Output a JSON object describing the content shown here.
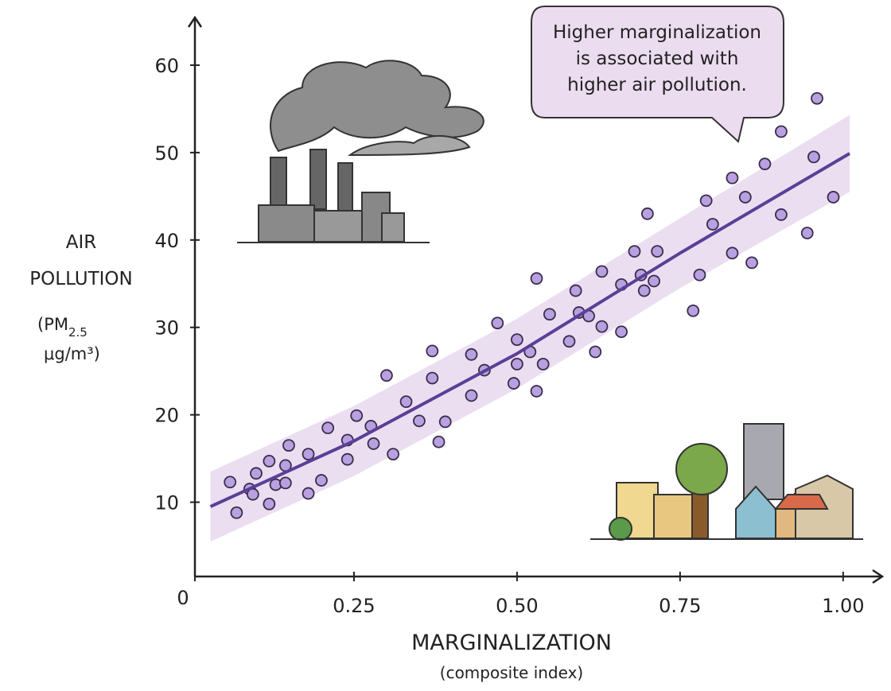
{
  "chart_data": {
    "type": "scatter",
    "annotation": [
      "Higher marginalization",
      "is associated with",
      "higher air pollution."
    ],
    "y_label": [
      "AIR",
      "POLLUTION"
    ],
    "y_unit": {
      "open": "(PM",
      "sub": "2.5",
      "rest": "μg/m³)"
    },
    "x_label": "MARGINALIZATION",
    "x_sublabel": "(composite index)",
    "xlim": [
      0,
      1.06
    ],
    "ylim": [
      1.5,
      65
    ],
    "xticks": [
      0,
      0.25,
      {
        "value": 0.5,
        "label": "0.50"
      },
      0.75,
      {
        "value": 1,
        "label": "1.00"
      }
    ],
    "yticks": [
      10,
      20,
      30,
      40,
      50,
      60
    ],
    "series": [
      {
        "color": "#b9a0e0",
        "x": [
          0.06,
          0.07,
          0.09,
          0.095,
          0.1,
          0.12,
          0.12,
          0.13,
          0.145,
          0.145,
          0.15,
          0.18,
          0.18,
          0.2,
          0.21,
          0.24,
          0.24,
          0.254,
          0.276,
          0.28,
          0.3,
          0.31,
          0.33,
          0.35,
          0.37,
          0.37,
          0.38,
          0.39,
          0.43,
          0.43,
          0.45,
          0.47,
          0.495,
          0.5,
          0.5,
          0.52,
          0.53,
          0.53,
          0.54,
          0.55,
          0.58,
          0.59,
          0.595,
          0.61,
          0.62,
          0.63,
          0.63,
          0.66,
          0.66,
          0.68,
          0.69,
          0.695,
          0.7,
          0.71,
          0.715,
          0.77,
          0.78,
          0.79,
          0.8,
          0.83,
          0.83,
          0.85,
          0.86,
          0.88,
          0.905,
          0.905,
          0.945,
          0.955,
          0.96,
          0.985
        ],
        "values": [
          12.3,
          8.8,
          11.5,
          10.9,
          13.3,
          9.8,
          14.7,
          12.0,
          14.2,
          12.2,
          16.5,
          11.0,
          15.5,
          12.5,
          18.5,
          17.1,
          14.9,
          19.9,
          18.7,
          16.7,
          24.5,
          15.5,
          21.5,
          19.3,
          24.2,
          27.3,
          16.9,
          19.2,
          22.2,
          26.9,
          25.1,
          30.5,
          23.6,
          28.6,
          25.8,
          27.2,
          35.6,
          22.7,
          25.8,
          31.5,
          28.4,
          34.2,
          31.7,
          31.3,
          27.2,
          30.1,
          36.4,
          29.5,
          34.9,
          38.7,
          36.0,
          34.2,
          43.0,
          35.3,
          38.7,
          31.9,
          36.0,
          44.5,
          41.8,
          38.5,
          47.1,
          44.9,
          37.4,
          48.7,
          42.9,
          52.4,
          40.8,
          49.5,
          56.2,
          44.9
        ]
      }
    ],
    "fit": {
      "color": "#5b3f96",
      "band_color": "#e6d6ee",
      "x": [
        0.03,
        0.25,
        0.5,
        0.75,
        1.01
      ],
      "values": [
        9.5,
        17,
        27,
        38.5,
        49.9
      ],
      "lower": [
        5.5,
        13,
        23,
        34.5,
        45.5
      ],
      "upper": [
        13.5,
        21,
        31,
        42.5,
        54.3
      ]
    }
  }
}
